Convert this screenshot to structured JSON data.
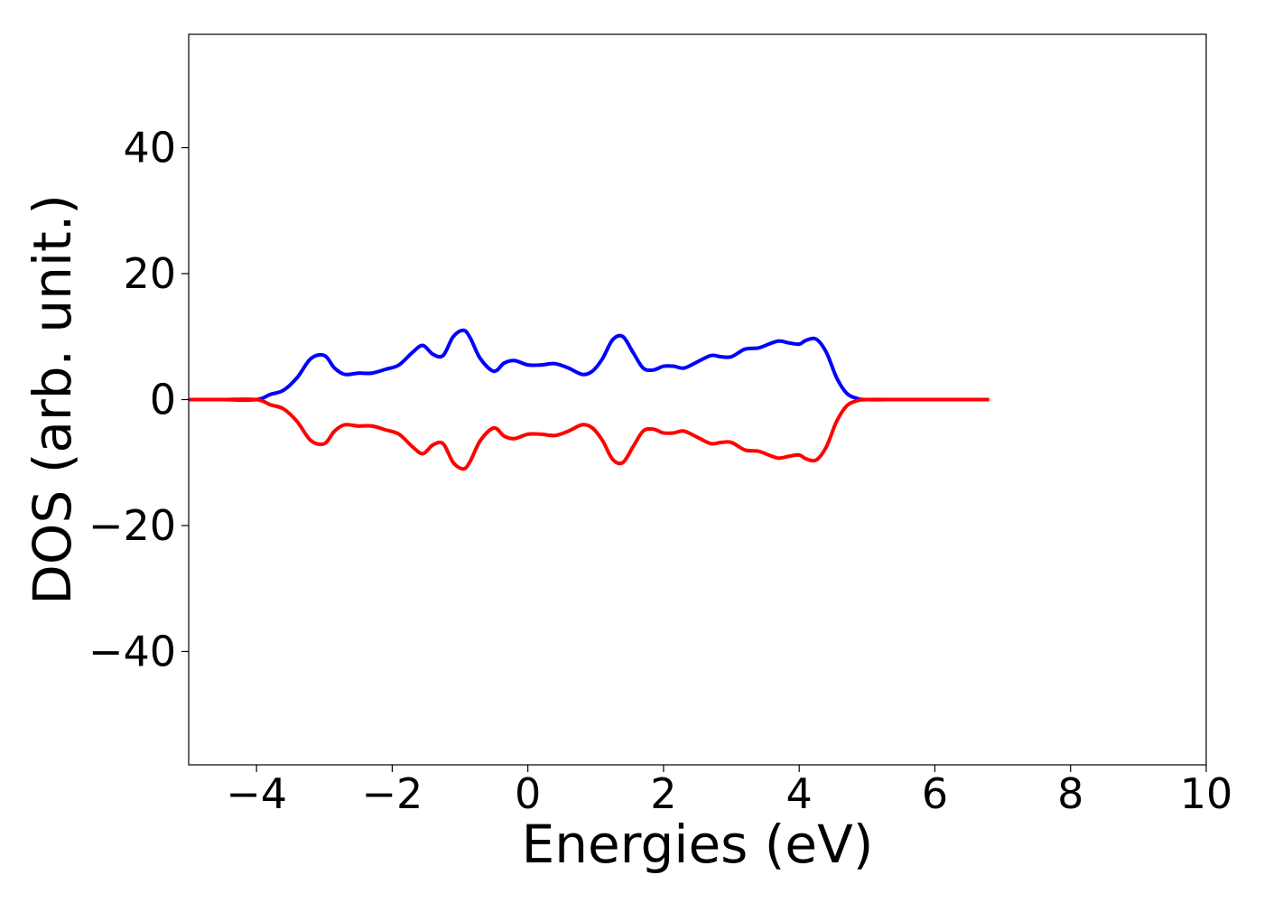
{
  "chart_data": {
    "type": "line",
    "title": "",
    "xlabel": "Energies (eV)",
    "ylabel": "DOS (arb. unit.)",
    "xlim": [
      -5,
      10
    ],
    "ylim": [
      -58,
      58
    ],
    "xticks": [
      -4,
      -2,
      0,
      2,
      4,
      6,
      8,
      10
    ],
    "xtick_labels": [
      "−4",
      "−2",
      "0",
      "2",
      "4",
      "6",
      "8",
      "10"
    ],
    "yticks": [
      40,
      20,
      0,
      -20,
      -40
    ],
    "ytick_labels": [
      "40",
      "20",
      "0",
      "−20",
      "−40"
    ],
    "grid": false,
    "legend": "none",
    "series": [
      {
        "color": "#0000ff",
        "x": [
          -5.0,
          -4.5,
          -4.0,
          -3.8,
          -3.6,
          -3.4,
          -3.2,
          -3.0,
          -2.85,
          -2.7,
          -2.5,
          -2.3,
          -2.1,
          -1.9,
          -1.7,
          -1.55,
          -1.4,
          -1.25,
          -1.1,
          -0.95,
          -0.85,
          -0.7,
          -0.5,
          -0.35,
          -0.2,
          0.0,
          0.2,
          0.4,
          0.6,
          0.8,
          0.95,
          1.1,
          1.25,
          1.4,
          1.55,
          1.7,
          1.85,
          2.0,
          2.15,
          2.3,
          2.5,
          2.7,
          2.85,
          3.0,
          3.2,
          3.4,
          3.55,
          3.7,
          3.85,
          4.0,
          4.1,
          4.25,
          4.4,
          4.55,
          4.7,
          4.85,
          5.0,
          5.5,
          6.0,
          6.5,
          6.8
        ],
        "y": [
          0,
          0,
          0,
          0.8,
          1.5,
          3.5,
          6.5,
          7.0,
          5.0,
          4.0,
          4.2,
          4.2,
          4.8,
          5.5,
          7.5,
          8.6,
          7.2,
          7.0,
          10.0,
          11.0,
          9.8,
          6.5,
          4.5,
          5.8,
          6.2,
          5.5,
          5.5,
          5.7,
          5.0,
          4.0,
          4.5,
          6.5,
          9.5,
          10.0,
          7.5,
          5.0,
          4.7,
          5.3,
          5.3,
          5.0,
          6.0,
          7.0,
          6.8,
          6.8,
          8.0,
          8.2,
          8.8,
          9.3,
          9.0,
          8.8,
          9.4,
          9.6,
          7.5,
          3.5,
          1.0,
          0.2,
          0,
          0,
          0,
          0,
          0
        ]
      },
      {
        "color": "#ff0000",
        "x": [
          -5.0,
          -4.5,
          -4.0,
          -3.8,
          -3.6,
          -3.4,
          -3.2,
          -3.0,
          -2.85,
          -2.7,
          -2.5,
          -2.3,
          -2.1,
          -1.9,
          -1.7,
          -1.55,
          -1.4,
          -1.25,
          -1.1,
          -0.95,
          -0.85,
          -0.7,
          -0.5,
          -0.35,
          -0.2,
          0.0,
          0.2,
          0.4,
          0.6,
          0.8,
          0.95,
          1.1,
          1.25,
          1.4,
          1.55,
          1.7,
          1.85,
          2.0,
          2.15,
          2.3,
          2.5,
          2.7,
          2.85,
          3.0,
          3.2,
          3.4,
          3.55,
          3.7,
          3.85,
          4.0,
          4.1,
          4.25,
          4.4,
          4.55,
          4.7,
          4.85,
          5.0,
          5.5,
          6.0,
          6.5,
          6.8
        ],
        "y": [
          0,
          0,
          0,
          -0.8,
          -1.5,
          -3.5,
          -6.5,
          -7.0,
          -5.0,
          -4.0,
          -4.2,
          -4.2,
          -4.8,
          -5.5,
          -7.5,
          -8.6,
          -7.2,
          -7.0,
          -10.0,
          -11.0,
          -9.8,
          -6.5,
          -4.5,
          -5.8,
          -6.2,
          -5.5,
          -5.5,
          -5.7,
          -5.0,
          -4.0,
          -4.5,
          -6.5,
          -9.5,
          -10.0,
          -7.5,
          -5.0,
          -4.7,
          -5.3,
          -5.3,
          -5.0,
          -6.0,
          -7.0,
          -6.8,
          -6.8,
          -8.0,
          -8.2,
          -8.8,
          -9.3,
          -9.0,
          -8.8,
          -9.4,
          -9.6,
          -7.5,
          -3.5,
          -1.0,
          -0.2,
          0,
          0,
          0,
          0,
          0
        ]
      }
    ]
  }
}
